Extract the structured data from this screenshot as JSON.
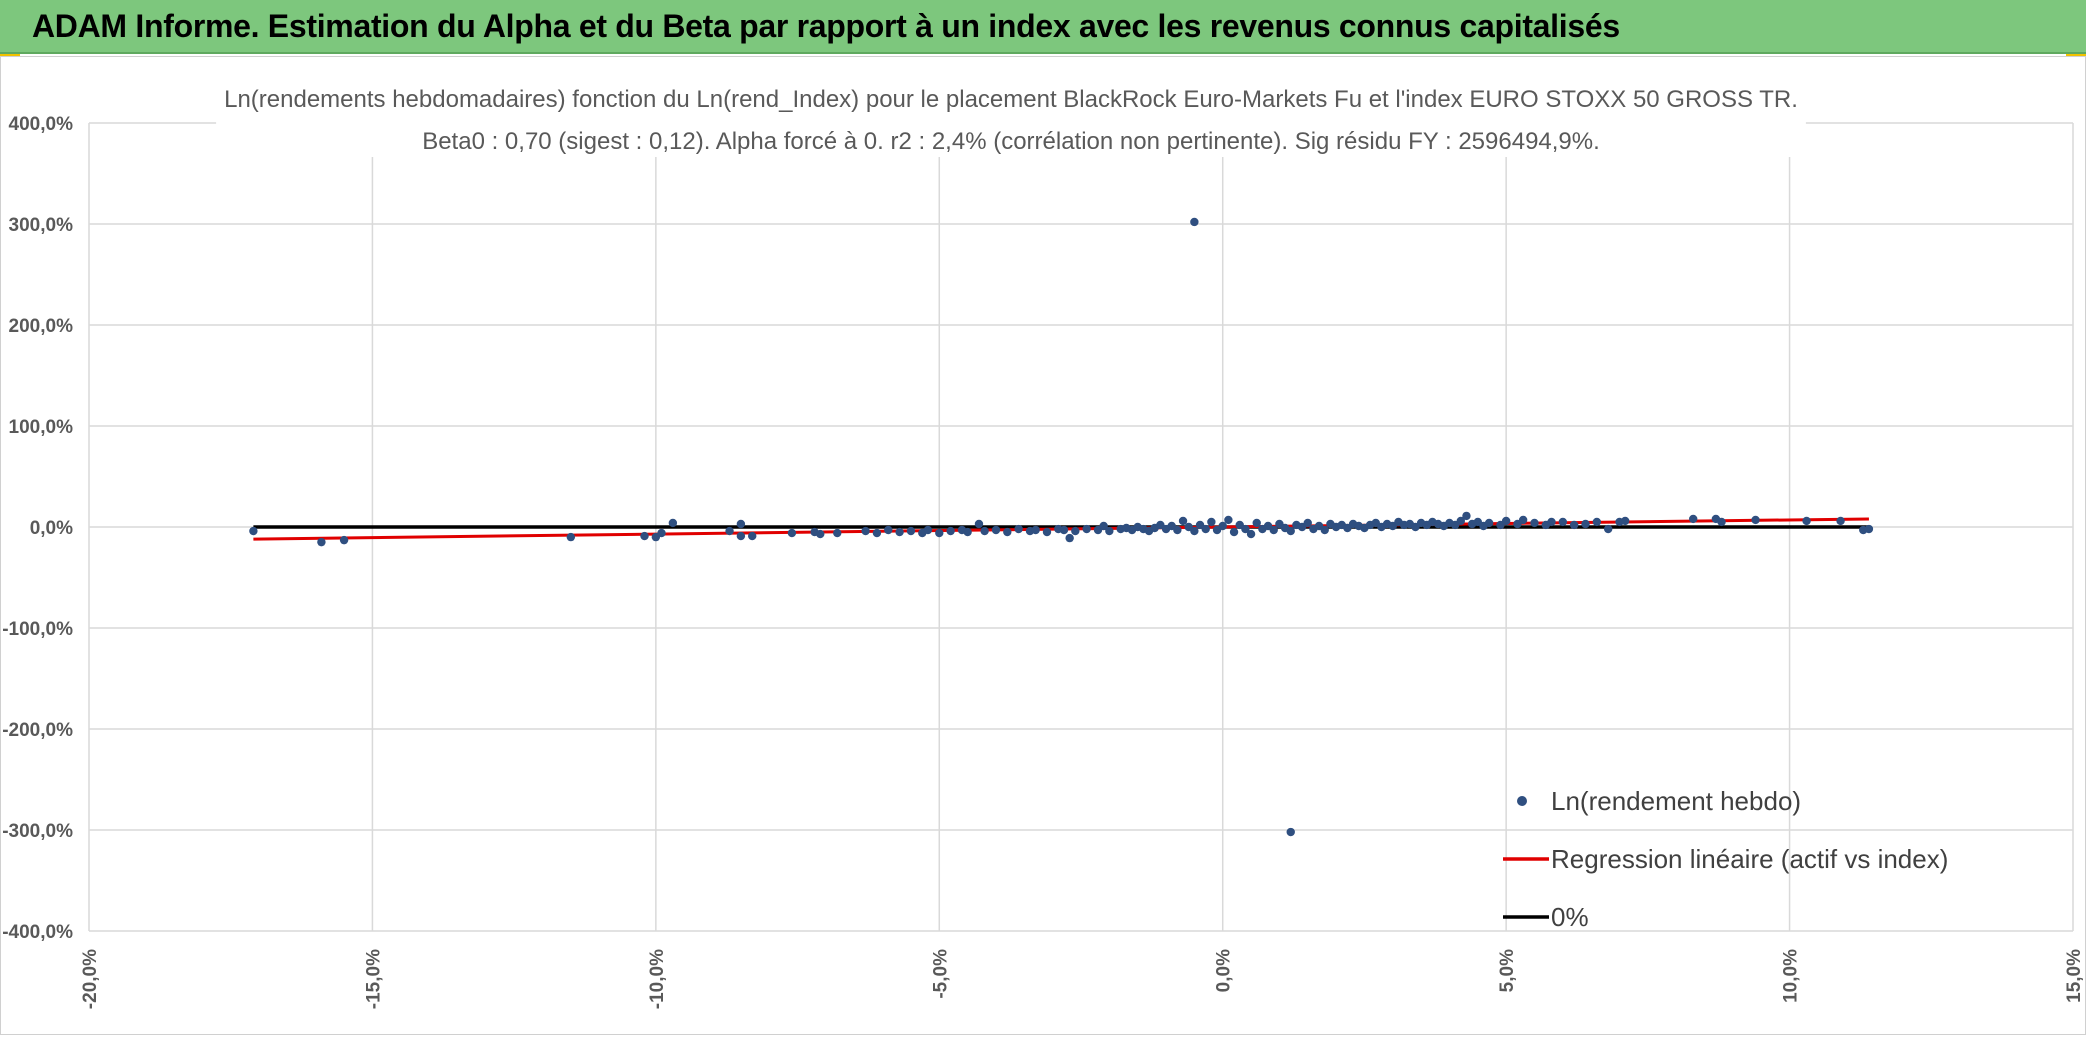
{
  "banner": {
    "title": "ADAM Informe. Estimation du Alpha et du Beta par rapport à un index avec les revenus connus capitalisés"
  },
  "colors": {
    "banner": "#7dc77d",
    "accent_marks": "#f2c200",
    "points": "#2f4f80",
    "regression": "#e00000",
    "zero_line": "#000000",
    "grid": "#d9d9d9"
  },
  "chart_data": {
    "type": "scatter",
    "title_line1": "Ln(rendements hebdomadaires) fonction du Ln(rend_Index) pour le placement BlackRock Euro-Markets Fu et l'index EURO STOXX 50 GROSS TR.",
    "title_line2": "Beta0 : 0,70 (sigest : 0,12). Alpha forcé à 0. r2 : 2,4% (corrélation non pertinente). Sig résidu FY : 2596494,9%.",
    "xlim": [
      -0.2,
      0.15
    ],
    "ylim": [
      -4.0,
      4.0
    ],
    "x_ticks": [
      -0.2,
      -0.15,
      -0.1,
      -0.05,
      0.0,
      0.05,
      0.1,
      0.15
    ],
    "x_tick_labels": [
      "-20,0%",
      "-15,0%",
      "-10,0%",
      "-5,0%",
      "0,0%",
      "5,0%",
      "10,0%",
      "15,0%"
    ],
    "y_ticks": [
      4,
      3,
      2,
      1,
      0,
      -1,
      -2,
      -3,
      -4
    ],
    "y_tick_labels": [
      "400,0%",
      "300,0%",
      "200,0%",
      "100,0%",
      "0,0%",
      "-100,0%",
      "-200,0%",
      "-300,0%",
      "-400,0%"
    ],
    "grid": true,
    "legend_position": "bottom-right",
    "legend": [
      {
        "label": "Ln(rendement hebdo)",
        "kind": "marker"
      },
      {
        "label": "Regression linéaire (actif vs index)",
        "kind": "line"
      },
      {
        "label": "0%",
        "kind": "line"
      }
    ],
    "regression": {
      "beta": 0.7,
      "x_range": [
        -0.171,
        0.114
      ]
    },
    "zero_line": {
      "y": 0,
      "x_range": [
        -0.171,
        0.114
      ]
    },
    "points": [
      [
        -0.171,
        -0.04
      ],
      [
        -0.159,
        -0.15
      ],
      [
        -0.155,
        -0.13
      ],
      [
        -0.115,
        -0.1
      ],
      [
        -0.102,
        -0.09
      ],
      [
        -0.1,
        -0.1
      ],
      [
        -0.099,
        -0.06
      ],
      [
        -0.097,
        0.04
      ],
      [
        -0.087,
        -0.04
      ],
      [
        -0.085,
        0.03
      ],
      [
        -0.085,
        -0.09
      ],
      [
        -0.083,
        -0.09
      ],
      [
        -0.076,
        -0.06
      ],
      [
        -0.072,
        -0.05
      ],
      [
        -0.071,
        -0.07
      ],
      [
        -0.068,
        -0.06
      ],
      [
        -0.063,
        -0.04
      ],
      [
        -0.061,
        -0.06
      ],
      [
        -0.059,
        -0.03
      ],
      [
        -0.057,
        -0.05
      ],
      [
        -0.055,
        -0.04
      ],
      [
        -0.053,
        -0.06
      ],
      [
        -0.052,
        -0.03
      ],
      [
        -0.05,
        -0.06
      ],
      [
        -0.048,
        -0.04
      ],
      [
        -0.046,
        -0.03
      ],
      [
        -0.045,
        -0.05
      ],
      [
        -0.043,
        0.03
      ],
      [
        -0.042,
        -0.04
      ],
      [
        -0.04,
        -0.03
      ],
      [
        -0.038,
        -0.05
      ],
      [
        -0.036,
        -0.02
      ],
      [
        -0.034,
        -0.04
      ],
      [
        -0.033,
        -0.03
      ],
      [
        -0.031,
        -0.05
      ],
      [
        -0.029,
        -0.02
      ],
      [
        -0.028,
        -0.03
      ],
      [
        -0.027,
        -0.11
      ],
      [
        -0.026,
        -0.04
      ],
      [
        -0.024,
        -0.02
      ],
      [
        -0.022,
        -0.03
      ],
      [
        -0.021,
        0.01
      ],
      [
        -0.02,
        -0.04
      ],
      [
        -0.018,
        -0.02
      ],
      [
        -0.017,
        -0.01
      ],
      [
        -0.016,
        -0.03
      ],
      [
        -0.015,
        0.0
      ],
      [
        -0.014,
        -0.02
      ],
      [
        -0.013,
        -0.04
      ],
      [
        -0.012,
        -0.01
      ],
      [
        -0.011,
        0.02
      ],
      [
        -0.01,
        -0.02
      ],
      [
        -0.009,
        0.01
      ],
      [
        -0.008,
        -0.03
      ],
      [
        -0.007,
        0.06
      ],
      [
        -0.006,
        0.0
      ],
      [
        -0.005,
        -0.04
      ],
      [
        -0.004,
        0.02
      ],
      [
        -0.003,
        -0.02
      ],
      [
        -0.002,
        0.05
      ],
      [
        -0.001,
        -0.03
      ],
      [
        0.0,
        0.01
      ],
      [
        0.001,
        0.07
      ],
      [
        0.002,
        -0.05
      ],
      [
        0.003,
        0.02
      ],
      [
        0.004,
        -0.02
      ],
      [
        0.005,
        -0.07
      ],
      [
        0.006,
        0.04
      ],
      [
        0.007,
        -0.02
      ],
      [
        0.008,
        0.01
      ],
      [
        0.009,
        -0.03
      ],
      [
        0.01,
        0.03
      ],
      [
        0.011,
        -0.01
      ],
      [
        0.012,
        -0.04
      ],
      [
        0.013,
        0.02
      ],
      [
        0.014,
        0.0
      ],
      [
        0.015,
        0.04
      ],
      [
        0.016,
        -0.02
      ],
      [
        0.017,
        0.01
      ],
      [
        0.018,
        -0.03
      ],
      [
        0.019,
        0.03
      ],
      [
        0.02,
        0.0
      ],
      [
        0.021,
        0.02
      ],
      [
        0.022,
        -0.01
      ],
      [
        0.023,
        0.03
      ],
      [
        0.024,
        0.01
      ],
      [
        0.025,
        -0.01
      ],
      [
        0.026,
        0.02
      ],
      [
        0.027,
        0.04
      ],
      [
        0.028,
        0.0
      ],
      [
        0.029,
        0.03
      ],
      [
        0.03,
        0.01
      ],
      [
        0.031,
        0.05
      ],
      [
        0.032,
        0.02
      ],
      [
        0.033,
        0.03
      ],
      [
        0.034,
        0.0
      ],
      [
        0.035,
        0.04
      ],
      [
        0.036,
        0.02
      ],
      [
        0.037,
        0.05
      ],
      [
        0.038,
        0.03
      ],
      [
        0.039,
        0.01
      ],
      [
        0.04,
        0.04
      ],
      [
        0.041,
        0.02
      ],
      [
        0.042,
        0.06
      ],
      [
        0.043,
        0.11
      ],
      [
        0.044,
        0.03
      ],
      [
        0.045,
        0.05
      ],
      [
        0.046,
        0.01
      ],
      [
        0.047,
        0.04
      ],
      [
        0.049,
        0.02
      ],
      [
        0.05,
        0.06
      ],
      [
        0.052,
        0.03
      ],
      [
        0.053,
        0.07
      ],
      [
        0.055,
        0.04
      ],
      [
        0.057,
        0.02
      ],
      [
        0.058,
        0.05
      ],
      [
        0.06,
        0.05
      ],
      [
        0.062,
        0.02
      ],
      [
        0.064,
        0.03
      ],
      [
        0.066,
        0.05
      ],
      [
        0.068,
        -0.02
      ],
      [
        0.07,
        0.05
      ],
      [
        0.071,
        0.06
      ],
      [
        0.083,
        0.08
      ],
      [
        0.087,
        0.08
      ],
      [
        0.088,
        0.05
      ],
      [
        0.094,
        0.07
      ],
      [
        0.103,
        0.06
      ],
      [
        0.109,
        0.06
      ],
      [
        0.113,
        -0.03
      ],
      [
        0.114,
        -0.02
      ],
      [
        -0.005,
        3.02
      ],
      [
        0.012,
        -3.02
      ]
    ]
  }
}
